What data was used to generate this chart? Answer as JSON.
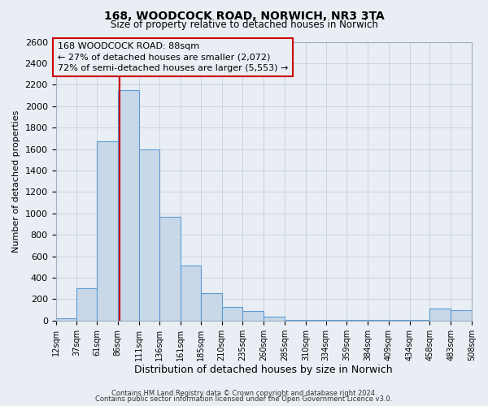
{
  "title": "168, WOODCOCK ROAD, NORWICH, NR3 3TA",
  "subtitle": "Size of property relative to detached houses in Norwich",
  "xlabel": "Distribution of detached houses by size in Norwich",
  "ylabel": "Number of detached properties",
  "bin_edges": [
    12,
    37,
    61,
    86,
    111,
    136,
    161,
    185,
    210,
    235,
    260,
    285,
    310,
    334,
    359,
    384,
    409,
    434,
    458,
    483,
    508
  ],
  "bar_heights": [
    25,
    300,
    1670,
    2150,
    1600,
    970,
    510,
    255,
    125,
    90,
    35,
    5,
    5,
    5,
    5,
    5,
    5,
    5,
    110,
    100
  ],
  "bar_color": "#c8d8e8",
  "bar_edge_color": "#5b9bd5",
  "property_line_x": 88,
  "property_line_color": "#cc0000",
  "ylim": [
    0,
    2600
  ],
  "yticks": [
    0,
    200,
    400,
    600,
    800,
    1000,
    1200,
    1400,
    1600,
    1800,
    2000,
    2200,
    2400,
    2600
  ],
  "annotation_title": "168 WOODCOCK ROAD: 88sqm",
  "annotation_line1": "← 27% of detached houses are smaller (2,072)",
  "annotation_line2": "72% of semi-detached houses are larger (5,553) →",
  "annotation_box_color": "#cc0000",
  "grid_color": "#c0c8d0",
  "bg_color": "#e8eef4",
  "footer1": "Contains HM Land Registry data © Crown copyright and database right 2024.",
  "footer2": "Contains public sector information licensed under the Open Government Licence v3.0."
}
